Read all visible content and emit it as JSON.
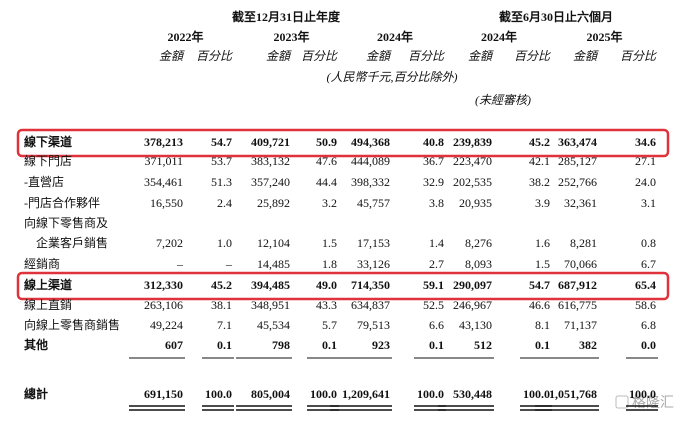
{
  "header": {
    "period_groups": [
      "截至12月31日止年度",
      "截至6月30日止六個月"
    ],
    "years": [
      "2022年",
      "2023年",
      "2024年",
      "2024年",
      "2025年"
    ],
    "amount_label": "金額",
    "percent_label": "百分比",
    "unit_note": "(人民幣千元,百分比除外)",
    "audit_note": "(未經審核)"
  },
  "table": {
    "rows": [
      {
        "label_lines": [
          "線下渠道"
        ],
        "bold": true,
        "highlight": true,
        "values": [
          "378,213",
          "54.7",
          "409,721",
          "50.9",
          "494,368",
          "40.8",
          "239,839",
          "45.2",
          "363,474",
          "34.6"
        ]
      },
      {
        "label_lines": [
          "線下門店"
        ],
        "values": [
          "371,011",
          "53.7",
          "383,132",
          "47.6",
          "444,089",
          "36.7",
          "223,470",
          "42.1",
          "285,127",
          "27.1"
        ]
      },
      {
        "label_lines": [
          "-直營店"
        ],
        "values": [
          "354,461",
          "51.3",
          "357,240",
          "44.4",
          "398,332",
          "32.9",
          "202,535",
          "38.2",
          "252,766",
          "24.0"
        ]
      },
      {
        "label_lines": [
          "-門店合作夥伴"
        ],
        "values": [
          "16,550",
          "2.4",
          "25,892",
          "3.2",
          "45,757",
          "3.8",
          "20,935",
          "3.9",
          "32,361",
          "3.1"
        ]
      },
      {
        "label_lines": [
          "向線下零售商及",
          "企業客戶銷售"
        ],
        "values": [
          "7,202",
          "1.0",
          "12,104",
          "1.5",
          "17,153",
          "1.4",
          "8,276",
          "1.6",
          "8,281",
          "0.8"
        ]
      },
      {
        "label_lines": [
          "經銷商"
        ],
        "values": [
          "–",
          "–",
          "14,485",
          "1.8",
          "33,126",
          "2.7",
          "8,093",
          "1.5",
          "70,066",
          "6.7"
        ]
      },
      {
        "label_lines": [
          "線上渠道"
        ],
        "bold": true,
        "highlight": true,
        "values": [
          "312,330",
          "45.2",
          "394,485",
          "49.0",
          "714,350",
          "59.1",
          "290,097",
          "54.7",
          "687,912",
          "65.4"
        ]
      },
      {
        "label_lines": [
          "線上直銷"
        ],
        "values": [
          "263,106",
          "38.1",
          "348,951",
          "43.3",
          "634,837",
          "52.5",
          "246,967",
          "46.6",
          "616,775",
          "58.6"
        ]
      },
      {
        "label_lines": [
          "向線上零售商銷售"
        ],
        "values": [
          "49,224",
          "7.1",
          "45,534",
          "5.7",
          "79,513",
          "6.6",
          "43,130",
          "8.1",
          "71,137",
          "6.8"
        ]
      },
      {
        "label_lines": [
          "其他"
        ],
        "bold": true,
        "values": [
          "607",
          "0.1",
          "798",
          "0.1",
          "923",
          "0.1",
          "512",
          "0.1",
          "382",
          "0.0"
        ]
      },
      {
        "label_lines": [
          "總計"
        ],
        "bold": true,
        "values": [
          "691,150",
          "100.0",
          "805,004",
          "100.0",
          "1,209,641",
          "100.0",
          "530,448",
          "100.0",
          "1,051,768",
          "100.0"
        ]
      }
    ]
  },
  "watermark": "格隆汇"
}
